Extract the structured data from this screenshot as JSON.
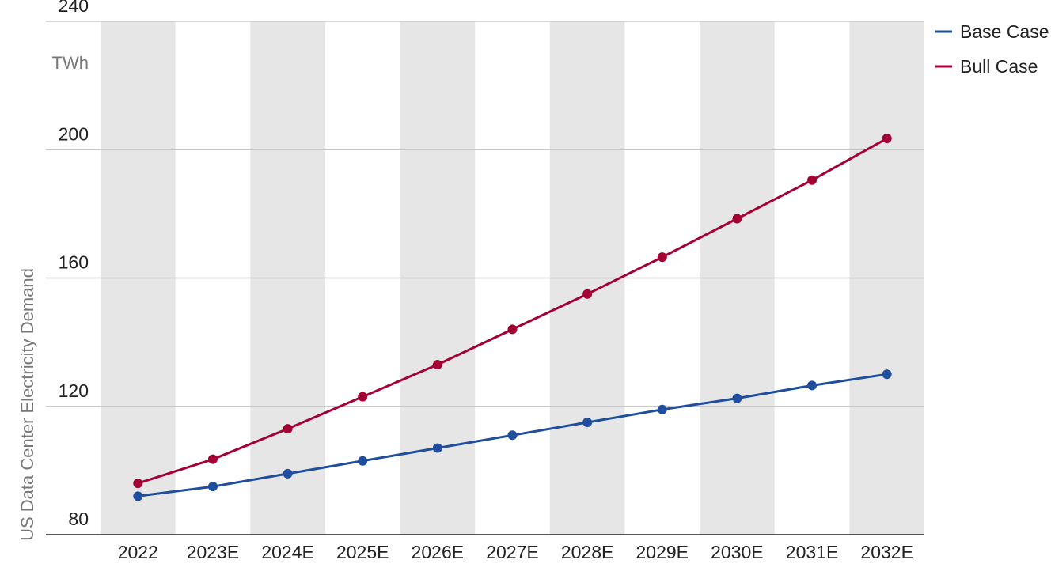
{
  "chart_data": {
    "type": "line",
    "title": "",
    "xlabel": "",
    "ylabel": "US Data Center Electricity Demand",
    "y_unit": "TWh",
    "ylim": [
      80,
      240
    ],
    "yticks": [
      80,
      120,
      160,
      200,
      240
    ],
    "grid": "horizontal",
    "alternating_column_shading": true,
    "legend_position": "top-right",
    "categories": [
      "2022",
      "2023E",
      "2024E",
      "2025E",
      "2026E",
      "2027E",
      "2028E",
      "2029E",
      "2030E",
      "2031E",
      "2032E"
    ],
    "series": [
      {
        "name": "Base Case",
        "color": "#1f4e9e",
        "values": [
          92,
          95,
          99,
          103,
          107,
          111,
          115,
          119,
          122.5,
          126.5,
          130
        ]
      },
      {
        "name": "Bull Case",
        "color": "#a50034",
        "values": [
          96,
          103.5,
          113,
          123,
          133,
          144,
          155,
          166.5,
          178.5,
          190.5,
          203.5
        ]
      }
    ],
    "colors": {
      "band": "#e6e6e6",
      "grid": "#c8c8c8",
      "axis": "#222222"
    }
  }
}
